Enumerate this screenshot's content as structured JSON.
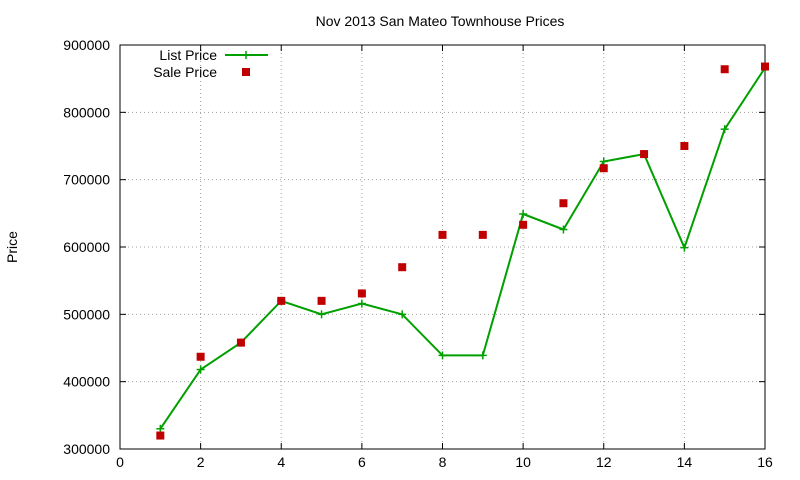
{
  "chart_data": {
    "type": "line",
    "title": "Nov 2013 San Mateo Townhouse Prices",
    "xlabel": "",
    "ylabel": "Price",
    "xlim": [
      0,
      16
    ],
    "ylim": [
      300000,
      900000
    ],
    "xticks": [
      0,
      2,
      4,
      6,
      8,
      10,
      12,
      14,
      16
    ],
    "yticks": [
      300000,
      400000,
      500000,
      600000,
      700000,
      800000,
      900000
    ],
    "grid": true,
    "legend_position": "top-left",
    "series": [
      {
        "name": "List Price",
        "style": "line-plus",
        "color": "#00a000",
        "points": [
          [
            1,
            330000
          ],
          [
            2,
            418000
          ],
          [
            3,
            458000
          ],
          [
            4,
            520000
          ],
          [
            5,
            500000
          ],
          [
            6,
            516000
          ],
          [
            7,
            500000
          ],
          [
            8,
            439000
          ],
          [
            9,
            439000
          ],
          [
            10,
            649000
          ],
          [
            11,
            626000
          ],
          [
            12,
            727000
          ],
          [
            13,
            738000
          ],
          [
            14,
            599000
          ],
          [
            15,
            775000
          ],
          [
            16,
            866000
          ]
        ]
      },
      {
        "name": "Sale Price",
        "style": "square",
        "color": "#c00000",
        "points": [
          [
            1,
            320000
          ],
          [
            2,
            437000
          ],
          [
            3,
            458000
          ],
          [
            4,
            520000
          ],
          [
            5,
            520000
          ],
          [
            6,
            531000
          ],
          [
            7,
            570000
          ],
          [
            8,
            618000
          ],
          [
            9,
            618000
          ],
          [
            10,
            633000
          ],
          [
            11,
            665000
          ],
          [
            12,
            717000
          ],
          [
            13,
            738000
          ],
          [
            14,
            750000
          ],
          [
            15,
            864000
          ],
          [
            16,
            868000
          ]
        ]
      }
    ]
  }
}
